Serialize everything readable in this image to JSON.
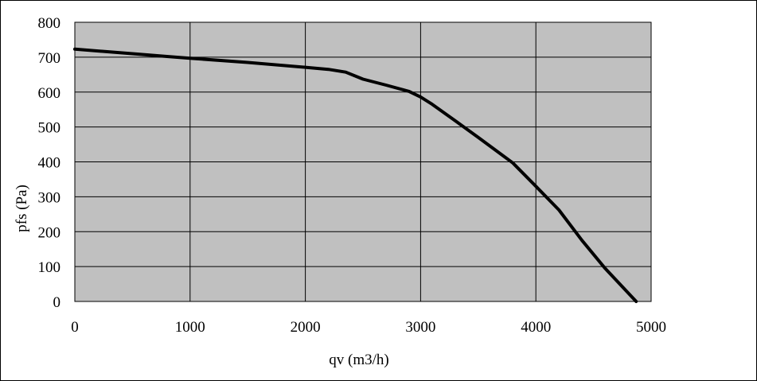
{
  "chart_data": {
    "type": "line",
    "xlabel": "qv (m3/h)",
    "ylabel": "pfs (Pa)",
    "xlim": [
      0,
      5000
    ],
    "ylim": [
      0,
      800
    ],
    "x_ticks": [
      "0",
      "1000",
      "2000",
      "3000",
      "4000",
      "5000"
    ],
    "y_ticks": [
      "0",
      "100",
      "200",
      "300",
      "400",
      "500",
      "600",
      "700",
      "800"
    ],
    "grid": true,
    "legend": "none",
    "plot_background": "#c0c0c0",
    "line_color": "#000000",
    "series": [
      {
        "x": [
          0,
          500,
          800,
          1000,
          1500,
          2000,
          2200,
          2350,
          2500,
          2700,
          2900,
          3000,
          3100,
          3300,
          3500,
          3800,
          4000,
          4200,
          4400,
          4600,
          4870
        ],
        "y": [
          723,
          710,
          702,
          697,
          685,
          671,
          665,
          657,
          637,
          620,
          602,
          586,
          565,
          518,
          470,
          397,
          330,
          262,
          175,
          95,
          0
        ]
      }
    ]
  }
}
